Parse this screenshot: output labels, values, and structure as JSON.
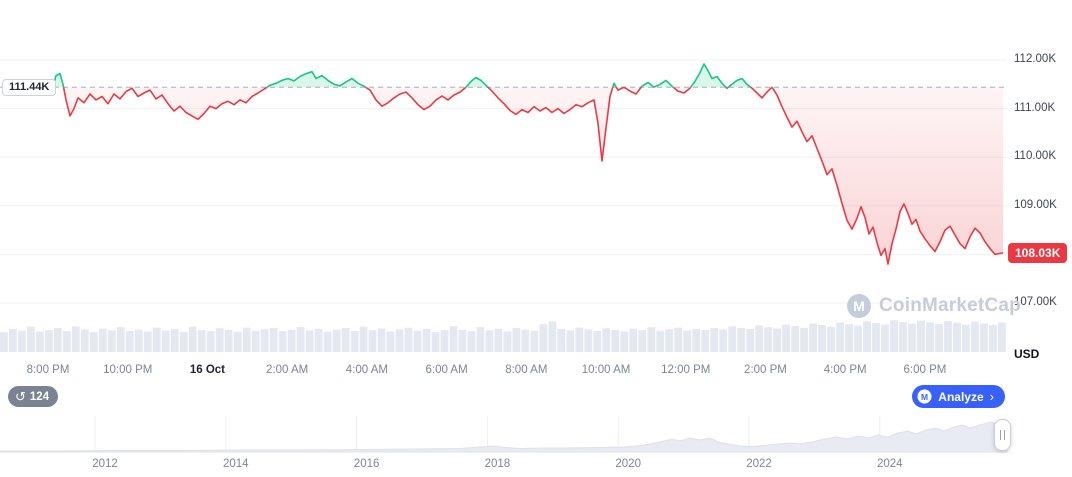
{
  "watermark": {
    "text": "CoinMarketCap"
  },
  "controls": {
    "history_count": "124",
    "analyze_label": "Analyze",
    "analyze_chevron": "›"
  },
  "range_selector": {
    "years": [
      "2012",
      "2014",
      "2016",
      "2018",
      "2020",
      "2022",
      "2024"
    ],
    "points": [
      [
        0,
        1
      ],
      [
        60,
        1
      ],
      [
        120,
        1.5
      ],
      [
        180,
        1.5
      ],
      [
        240,
        2
      ],
      [
        300,
        2
      ],
      [
        360,
        2.5
      ],
      [
        420,
        3
      ],
      [
        460,
        3.5
      ],
      [
        480,
        5
      ],
      [
        495,
        6
      ],
      [
        505,
        4.5
      ],
      [
        520,
        3.5
      ],
      [
        545,
        4
      ],
      [
        570,
        4
      ],
      [
        600,
        4.5
      ],
      [
        625,
        5
      ],
      [
        645,
        7
      ],
      [
        660,
        10
      ],
      [
        672,
        13
      ],
      [
        680,
        11
      ],
      [
        690,
        14
      ],
      [
        700,
        12
      ],
      [
        710,
        14
      ],
      [
        718,
        10
      ],
      [
        728,
        8
      ],
      [
        740,
        6
      ],
      [
        752,
        5.5
      ],
      [
        765,
        6.5
      ],
      [
        778,
        8
      ],
      [
        790,
        9
      ],
      [
        800,
        8
      ],
      [
        812,
        10
      ],
      [
        824,
        13
      ],
      [
        836,
        15
      ],
      [
        848,
        13
      ],
      [
        858,
        16
      ],
      [
        868,
        14
      ],
      [
        878,
        17
      ],
      [
        888,
        15
      ],
      [
        898,
        19
      ],
      [
        908,
        21
      ],
      [
        916,
        18
      ],
      [
        926,
        22
      ],
      [
        936,
        24
      ],
      [
        944,
        21
      ],
      [
        954,
        25
      ],
      [
        962,
        27
      ],
      [
        970,
        24
      ],
      [
        980,
        27
      ],
      [
        990,
        30
      ],
      [
        1000,
        28
      ],
      [
        1007,
        30
      ]
    ]
  },
  "chart_data": {
    "type": "line",
    "title": "",
    "unit": "USD",
    "open_price": 111.44,
    "open_price_label": "111.44K",
    "current_price": 108.03,
    "current_price_label": "108.03K",
    "ylim": [
      106.9,
      112.5
    ],
    "grid": true,
    "y_axis": {
      "unit_label": "USD",
      "labels": [
        "112.00K",
        "111.00K",
        "110.00K",
        "109.00K",
        "108.00K",
        "107.00K"
      ],
      "values": [
        112,
        111,
        110,
        109,
        108,
        107
      ]
    },
    "x_axis": {
      "labels": [
        "8:00 PM",
        "10:00 PM",
        "16 Oct",
        "2:00 AM",
        "4:00 AM",
        "6:00 AM",
        "8:00 AM",
        "10:00 AM",
        "12:00 PM",
        "2:00 PM",
        "4:00 PM",
        "6:00 PM"
      ],
      "date_label_index": 2
    },
    "colors": {
      "up": "#16c784",
      "down": "#ea3943",
      "up_fill": "rgba(22,199,132,0.16)",
      "badge": "#ea3943",
      "dashed": "#a6b0c4",
      "grid": "#eef1f6",
      "volume": "#e4e8f0",
      "accent_blue": "#3861fb",
      "history_badge": "#7b8392",
      "mini_fill": "#e8ebf2"
    },
    "series": [
      {
        "name": "price",
        "points": [
          [
            52,
            111.35
          ],
          [
            56,
            111.68
          ],
          [
            60,
            111.72
          ],
          [
            63,
            111.5
          ],
          [
            66,
            111.18
          ],
          [
            70,
            110.85
          ],
          [
            74,
            111.0
          ],
          [
            78,
            111.22
          ],
          [
            84,
            111.12
          ],
          [
            90,
            111.3
          ],
          [
            96,
            111.18
          ],
          [
            102,
            111.25
          ],
          [
            108,
            111.1
          ],
          [
            114,
            111.3
          ],
          [
            120,
            111.2
          ],
          [
            126,
            111.35
          ],
          [
            132,
            111.42
          ],
          [
            138,
            111.25
          ],
          [
            144,
            111.32
          ],
          [
            150,
            111.38
          ],
          [
            156,
            111.2
          ],
          [
            162,
            111.28
          ],
          [
            168,
            111.1
          ],
          [
            174,
            110.95
          ],
          [
            180,
            111.05
          ],
          [
            186,
            110.92
          ],
          [
            192,
            110.85
          ],
          [
            198,
            110.78
          ],
          [
            204,
            110.9
          ],
          [
            210,
            111.05
          ],
          [
            216,
            111.0
          ],
          [
            222,
            111.1
          ],
          [
            228,
            111.15
          ],
          [
            234,
            111.08
          ],
          [
            240,
            111.18
          ],
          [
            246,
            111.12
          ],
          [
            252,
            111.25
          ],
          [
            258,
            111.32
          ],
          [
            264,
            111.4
          ],
          [
            270,
            111.48
          ],
          [
            276,
            111.52
          ],
          [
            282,
            111.58
          ],
          [
            288,
            111.62
          ],
          [
            294,
            111.57
          ],
          [
            300,
            111.66
          ],
          [
            306,
            111.72
          ],
          [
            312,
            111.76
          ],
          [
            316,
            111.62
          ],
          [
            322,
            111.68
          ],
          [
            328,
            111.58
          ],
          [
            334,
            111.5
          ],
          [
            340,
            111.47
          ],
          [
            346,
            111.55
          ],
          [
            352,
            111.62
          ],
          [
            358,
            111.52
          ],
          [
            364,
            111.46
          ],
          [
            370,
            111.38
          ],
          [
            376,
            111.18
          ],
          [
            382,
            111.05
          ],
          [
            388,
            111.12
          ],
          [
            394,
            111.22
          ],
          [
            400,
            111.3
          ],
          [
            406,
            111.34
          ],
          [
            412,
            111.22
          ],
          [
            418,
            111.08
          ],
          [
            424,
            110.98
          ],
          [
            430,
            111.05
          ],
          [
            436,
            111.18
          ],
          [
            442,
            111.26
          ],
          [
            448,
            111.18
          ],
          [
            454,
            111.28
          ],
          [
            460,
            111.34
          ],
          [
            466,
            111.44
          ],
          [
            471,
            111.56
          ],
          [
            476,
            111.64
          ],
          [
            481,
            111.58
          ],
          [
            486,
            111.48
          ],
          [
            492,
            111.36
          ],
          [
            498,
            111.22
          ],
          [
            504,
            111.1
          ],
          [
            510,
            110.96
          ],
          [
            516,
            110.88
          ],
          [
            522,
            110.98
          ],
          [
            528,
            110.92
          ],
          [
            534,
            111.04
          ],
          [
            540,
            110.95
          ],
          [
            546,
            111.02
          ],
          [
            552,
            110.92
          ],
          [
            558,
            111.0
          ],
          [
            564,
            110.9
          ],
          [
            570,
            110.98
          ],
          [
            576,
            111.08
          ],
          [
            582,
            111.04
          ],
          [
            588,
            111.12
          ],
          [
            594,
            111.18
          ],
          [
            598,
            110.7
          ],
          [
            602,
            109.92
          ],
          [
            606,
            110.6
          ],
          [
            610,
            111.25
          ],
          [
            614,
            111.52
          ],
          [
            618,
            111.38
          ],
          [
            624,
            111.44
          ],
          [
            630,
            111.36
          ],
          [
            636,
            111.3
          ],
          [
            642,
            111.46
          ],
          [
            648,
            111.54
          ],
          [
            654,
            111.44
          ],
          [
            660,
            111.5
          ],
          [
            666,
            111.58
          ],
          [
            672,
            111.46
          ],
          [
            678,
            111.36
          ],
          [
            684,
            111.32
          ],
          [
            690,
            111.42
          ],
          [
            695,
            111.56
          ],
          [
            700,
            111.74
          ],
          [
            704,
            111.92
          ],
          [
            708,
            111.78
          ],
          [
            712,
            111.62
          ],
          [
            717,
            111.66
          ],
          [
            722,
            111.52
          ],
          [
            727,
            111.42
          ],
          [
            732,
            111.5
          ],
          [
            737,
            111.58
          ],
          [
            742,
            111.62
          ],
          [
            747,
            111.5
          ],
          [
            752,
            111.42
          ],
          [
            757,
            111.32
          ],
          [
            762,
            111.22
          ],
          [
            767,
            111.34
          ],
          [
            772,
            111.44
          ],
          [
            777,
            111.28
          ],
          [
            782,
            111.04
          ],
          [
            787,
            110.82
          ],
          [
            792,
            110.62
          ],
          [
            797,
            110.74
          ],
          [
            802,
            110.52
          ],
          [
            807,
            110.32
          ],
          [
            812,
            110.44
          ],
          [
            817,
            110.18
          ],
          [
            822,
            109.92
          ],
          [
            827,
            109.64
          ],
          [
            832,
            109.76
          ],
          [
            837,
            109.42
          ],
          [
            842,
            109.05
          ],
          [
            847,
            108.7
          ],
          [
            852,
            108.52
          ],
          [
            857,
            108.74
          ],
          [
            861,
            108.98
          ],
          [
            865,
            108.76
          ],
          [
            869,
            108.42
          ],
          [
            873,
            108.56
          ],
          [
            877,
            108.24
          ],
          [
            881,
            107.98
          ],
          [
            885,
            108.12
          ],
          [
            888,
            107.8
          ],
          [
            892,
            108.22
          ],
          [
            896,
            108.52
          ],
          [
            900,
            108.88
          ],
          [
            904,
            109.04
          ],
          [
            908,
            108.84
          ],
          [
            912,
            108.62
          ],
          [
            916,
            108.72
          ],
          [
            920,
            108.48
          ],
          [
            925,
            108.32
          ],
          [
            930,
            108.18
          ],
          [
            935,
            108.06
          ],
          [
            940,
            108.26
          ],
          [
            945,
            108.5
          ],
          [
            950,
            108.58
          ],
          [
            955,
            108.4
          ],
          [
            960,
            108.22
          ],
          [
            965,
            108.12
          ],
          [
            970,
            108.36
          ],
          [
            975,
            108.54
          ],
          [
            980,
            108.44
          ],
          [
            985,
            108.26
          ],
          [
            990,
            108.12
          ],
          [
            995,
            108.0
          ],
          [
            1003,
            108.03
          ]
        ]
      }
    ],
    "volume_bars": [
      0.35,
      0.5,
      0.42,
      0.6,
      0.38,
      0.45,
      0.55,
      0.4,
      0.62,
      0.48,
      0.36,
      0.52,
      0.44,
      0.58,
      0.41,
      0.47,
      0.39,
      0.56,
      0.43,
      0.5,
      0.37,
      0.61,
      0.45,
      0.4,
      0.53,
      0.46,
      0.38,
      0.57,
      0.42,
      0.49,
      0.54,
      0.4,
      0.46,
      0.59,
      0.43,
      0.51,
      0.38,
      0.47,
      0.55,
      0.41,
      0.6,
      0.44,
      0.52,
      0.39,
      0.48,
      0.56,
      0.42,
      0.5,
      0.37,
      0.45,
      0.63,
      0.46,
      0.4,
      0.58,
      0.44,
      0.51,
      0.39,
      0.55,
      0.47,
      0.42,
      0.72,
      0.85,
      0.5,
      0.44,
      0.57,
      0.48,
      0.41,
      0.53,
      0.46,
      0.39,
      0.52,
      0.45,
      0.58,
      0.42,
      0.49,
      0.56,
      0.43,
      0.5,
      0.46,
      0.54,
      0.48,
      0.62,
      0.55,
      0.5,
      0.66,
      0.58,
      0.52,
      0.7,
      0.63,
      0.55,
      0.75,
      0.68,
      0.6,
      0.8,
      0.72,
      0.65,
      0.85,
      0.77,
      0.7,
      0.9,
      0.82,
      0.74,
      0.88,
      0.8,
      0.73,
      0.86,
      0.78,
      0.7,
      0.83,
      0.75,
      0.68,
      0.8
    ]
  }
}
